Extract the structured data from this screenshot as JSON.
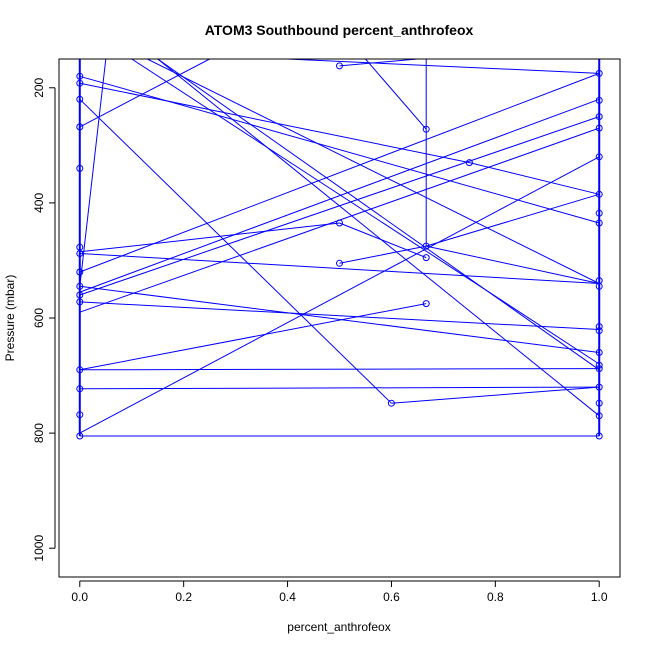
{
  "chart_data": {
    "type": "line",
    "title": "ATOM3 Southbound percent_anthrofeox",
    "xlabel": "percent_anthrofeox",
    "ylabel": "Pressure (mbar)",
    "xlim": [
      -0.04,
      1.04
    ],
    "ylim": [
      1050,
      150
    ],
    "y_reversed": true,
    "xticks": [
      "0.0",
      "0.2",
      "0.4",
      "0.6",
      "0.8",
      "1.0"
    ],
    "yticks": [
      "200",
      "400",
      "600",
      "800",
      "1000"
    ],
    "grid": false,
    "line_color": "#0000ff",
    "series": [
      {
        "x": [
          0,
          0.1,
          0.85,
          1
        ],
        "y": [
          150,
          150,
          150,
          150
        ]
      },
      {
        "x": [
          0,
          1
        ],
        "y": [
          180,
          435
        ]
      },
      {
        "x": [
          0,
          0.75
        ],
        "y": [
          192,
          330
        ]
      },
      {
        "x": [
          0,
          0.6
        ],
        "y": [
          220,
          748
        ]
      },
      {
        "x": [
          0,
          0.25
        ],
        "y": [
          268,
          150
        ]
      },
      {
        "x": [
          0,
          0.5
        ],
        "y": [
          485,
          435
        ]
      },
      {
        "x": [
          0,
          1
        ],
        "y": [
          488,
          540
        ]
      },
      {
        "x": [
          0,
          1
        ],
        "y": [
          520,
          175
        ]
      },
      {
        "x": [
          0,
          0.05
        ],
        "y": [
          545,
          150
        ]
      },
      {
        "x": [
          0,
          1
        ],
        "y": [
          555,
          220
        ]
      },
      {
        "x": [
          0,
          1
        ],
        "y": [
          545,
          660
        ]
      },
      {
        "x": [
          0,
          1
        ],
        "y": [
          572,
          620
        ]
      },
      {
        "x": [
          0,
          0.667
        ],
        "y": [
          690,
          575
        ]
      },
      {
        "x": [
          0,
          1
        ],
        "y": [
          690,
          688
        ]
      },
      {
        "x": [
          0,
          1
        ],
        "y": [
          723,
          720
        ]
      },
      {
        "x": [
          0,
          1
        ],
        "y": [
          805,
          805
        ]
      },
      {
        "x": [
          0,
          1
        ],
        "y": [
          800,
          320
        ]
      },
      {
        "x": [
          0.5,
          0.667,
          1
        ],
        "y": [
          505,
          475,
          385
        ]
      },
      {
        "x": [
          0.5,
          0.65
        ],
        "y": [
          162,
          150
        ]
      },
      {
        "x": [
          0.5,
          0.667
        ],
        "y": [
          435,
          495
        ]
      },
      {
        "x": [
          0.6,
          1
        ],
        "y": [
          748,
          720
        ]
      },
      {
        "x": [
          0.667,
          0.667
        ],
        "y": [
          150,
          475
        ]
      },
      {
        "x": [
          0.667,
          1
        ],
        "y": [
          475,
          540
        ]
      },
      {
        "x": [
          0.55,
          0.667
        ],
        "y": [
          150,
          272
        ]
      },
      {
        "x": [
          0.1,
          1
        ],
        "y": [
          150,
          680
        ]
      },
      {
        "x": [
          0.15,
          1
        ],
        "y": [
          150,
          770
        ]
      },
      {
        "x": [
          0.13,
          1
        ],
        "y": [
          150,
          540
        ]
      },
      {
        "x": [
          0.15,
          1
        ],
        "y": [
          150,
          690
        ]
      },
      {
        "x": [
          0.75,
          1
        ],
        "y": [
          330,
          385
        ]
      },
      {
        "x": [
          0.4,
          1
        ],
        "y": [
          150,
          175
        ]
      },
      {
        "x": [
          0.0,
          1
        ],
        "y": [
          560,
          250
        ]
      },
      {
        "x": [
          0.0,
          1
        ],
        "y": [
          590,
          270
        ]
      }
    ],
    "points": [
      {
        "x": 0,
        "y": 180
      },
      {
        "x": 0,
        "y": 192
      },
      {
        "x": 0,
        "y": 220
      },
      {
        "x": 0,
        "y": 268
      },
      {
        "x": 0,
        "y": 340
      },
      {
        "x": 0,
        "y": 477
      },
      {
        "x": 0,
        "y": 488
      },
      {
        "x": 0,
        "y": 520
      },
      {
        "x": 0,
        "y": 545
      },
      {
        "x": 0,
        "y": 560
      },
      {
        "x": 0,
        "y": 572
      },
      {
        "x": 0,
        "y": 690
      },
      {
        "x": 0,
        "y": 723
      },
      {
        "x": 0,
        "y": 768
      },
      {
        "x": 0,
        "y": 805
      },
      {
        "x": 0.5,
        "y": 162
      },
      {
        "x": 0.5,
        "y": 435
      },
      {
        "x": 0.5,
        "y": 505
      },
      {
        "x": 0.6,
        "y": 748
      },
      {
        "x": 0.667,
        "y": 272
      },
      {
        "x": 0.667,
        "y": 475
      },
      {
        "x": 0.667,
        "y": 495
      },
      {
        "x": 0.667,
        "y": 575
      },
      {
        "x": 0.75,
        "y": 330
      },
      {
        "x": 1,
        "y": 175
      },
      {
        "x": 1,
        "y": 222
      },
      {
        "x": 1,
        "y": 250
      },
      {
        "x": 1,
        "y": 270
      },
      {
        "x": 1,
        "y": 320
      },
      {
        "x": 1,
        "y": 385
      },
      {
        "x": 1,
        "y": 418
      },
      {
        "x": 1,
        "y": 435
      },
      {
        "x": 1,
        "y": 535
      },
      {
        "x": 1,
        "y": 545
      },
      {
        "x": 1,
        "y": 615
      },
      {
        "x": 1,
        "y": 622
      },
      {
        "x": 1,
        "y": 660
      },
      {
        "x": 1,
        "y": 682
      },
      {
        "x": 1,
        "y": 688
      },
      {
        "x": 1,
        "y": 720
      },
      {
        "x": 1,
        "y": 748
      },
      {
        "x": 1,
        "y": 770
      },
      {
        "x": 1,
        "y": 805
      }
    ]
  }
}
